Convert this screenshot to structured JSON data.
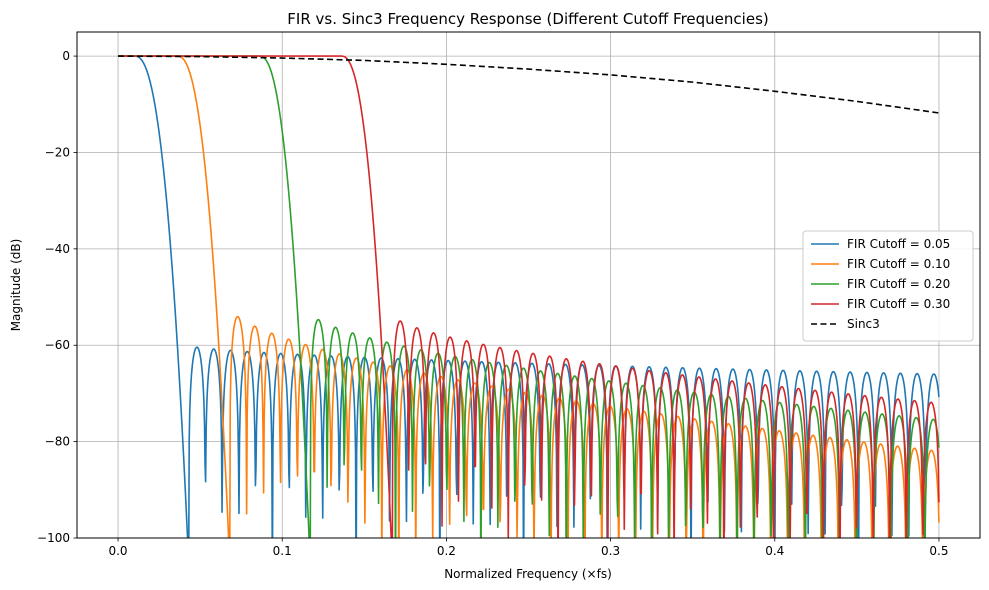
{
  "chart_data": {
    "type": "line",
    "title": "FIR vs. Sinc3 Frequency Response (Different Cutoff Frequencies)",
    "xlabel": "Normalized Frequency (×fs)",
    "ylabel": "Magnitude (dB)",
    "xlim": [
      -0.025,
      0.525
    ],
    "ylim": [
      -100,
      5
    ],
    "xticks": [
      0.0,
      0.1,
      0.2,
      0.3,
      0.4,
      0.5
    ],
    "xtick_labels": [
      "0.0",
      "0.1",
      "0.2",
      "0.3",
      "0.4",
      "0.5"
    ],
    "yticks": [
      0,
      -20,
      -40,
      -60,
      -80,
      -100
    ],
    "ytick_labels": [
      "0",
      "−20",
      "−40",
      "−60",
      "−80",
      "−100"
    ],
    "grid": true,
    "legend_position": "center-right",
    "series": [
      {
        "name": "FIR Cutoff = 0.05",
        "color": "#1f77b4",
        "style": "solid",
        "passband_edge": 0.01,
        "stopband_edge": 0.043,
        "sidelobe_start_db": -60,
        "sidelobe_end_db": -66,
        "lobe_period": 0.0102
      },
      {
        "name": "FIR Cutoff = 0.10",
        "color": "#ff7f0e",
        "style": "solid",
        "passband_edge": 0.036,
        "stopband_edge": 0.068,
        "sidelobe_start_db": -52,
        "sidelobe_end_db": -82,
        "lobe_period": 0.0103
      },
      {
        "name": "FIR Cutoff = 0.20",
        "color": "#2ca02c",
        "style": "solid",
        "passband_edge": 0.086,
        "stopband_edge": 0.117,
        "sidelobe_start_db": -53,
        "sidelobe_end_db": -75.5,
        "lobe_period": 0.0104
      },
      {
        "name": "FIR Cutoff = 0.30",
        "color": "#d62728",
        "style": "solid",
        "passband_edge": 0.136,
        "stopband_edge": 0.167,
        "sidelobe_start_db": -53.5,
        "sidelobe_end_db": -72,
        "lobe_period": 0.0101
      },
      {
        "name": "Sinc3",
        "color": "#000000",
        "style": "dashed",
        "x": [
          0.0,
          0.05,
          0.1,
          0.15,
          0.2,
          0.25,
          0.3,
          0.35,
          0.4,
          0.45,
          0.5
        ],
        "y": [
          0.0,
          -0.1,
          -0.4,
          -0.9,
          -1.7,
          -2.7,
          -3.9,
          -5.4,
          -7.3,
          -9.4,
          -11.8
        ]
      }
    ]
  }
}
